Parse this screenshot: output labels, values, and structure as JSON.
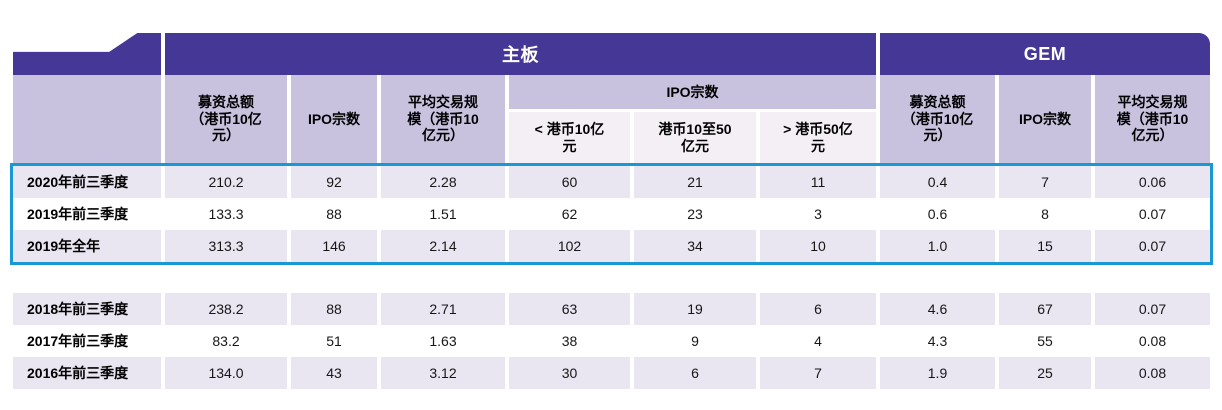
{
  "colors": {
    "band_purple": "#453795",
    "header_lavender": "#c9c2df",
    "subheader_pink": "#f4eef5",
    "row_lavender": "#e9e5f1",
    "highlight_border_blue": "#1a97d5"
  },
  "table": {
    "group_headers": {
      "main_board": "主板",
      "gem": "GEM"
    },
    "column_headers": {
      "mb_funds": "募资总额\n（港币10亿\n元）",
      "mb_ipo_count": "IPO宗数",
      "mb_avg_deal": "平均交易规\n模（港币10\n亿元）",
      "mb_ipo_group": "IPO宗数",
      "mb_ipo_lt10": "< 港币10亿\n元",
      "mb_ipo_10to50": "港币10至50\n亿元",
      "mb_ipo_gt50": "> 港币50亿\n元",
      "gem_funds": "募资总额\n（港币10亿\n元）",
      "gem_ipo_count": "IPO宗数",
      "gem_avg_deal": "平均交易规\n模（港币10\n亿元）"
    },
    "highlighted_rows": [
      {
        "label": "2020年前三季度",
        "values": [
          "210.2",
          "92",
          "2.28",
          "60",
          "21",
          "11",
          "0.4",
          "7",
          "0.06"
        ]
      },
      {
        "label": "2019年前三季度",
        "values": [
          "133.3",
          "88",
          "1.51",
          "62",
          "23",
          "3",
          "0.6",
          "8",
          "0.07"
        ]
      },
      {
        "label": "2019年全年",
        "values": [
          "313.3",
          "146",
          "2.14",
          "102",
          "34",
          "10",
          "1.0",
          "15",
          "0.07"
        ]
      }
    ],
    "history_rows": [
      {
        "label": "2018年前三季度",
        "values": [
          "238.2",
          "88",
          "2.71",
          "63",
          "19",
          "6",
          "4.6",
          "67",
          "0.07"
        ]
      },
      {
        "label": "2017年前三季度",
        "values": [
          "83.2",
          "51",
          "1.63",
          "38",
          "9",
          "4",
          "4.3",
          "55",
          "0.08"
        ]
      },
      {
        "label": "2016年前三季度",
        "values": [
          "134.0",
          "43",
          "3.12",
          "30",
          "6",
          "7",
          "1.9",
          "25",
          "0.08"
        ]
      }
    ]
  }
}
